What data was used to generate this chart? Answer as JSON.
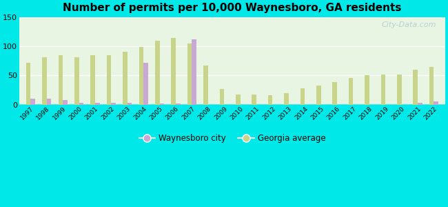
{
  "title": "Number of permits per 10,000 Waynesboro, GA residents",
  "years": [
    1997,
    1998,
    1999,
    2000,
    2001,
    2002,
    2003,
    2004,
    2005,
    2006,
    2007,
    2008,
    2009,
    2010,
    2011,
    2012,
    2013,
    2014,
    2015,
    2016,
    2017,
    2018,
    2019,
    2020,
    2021,
    2022
  ],
  "waynesboro": [
    10,
    10,
    8,
    3,
    3,
    3,
    3,
    72,
    2,
    2,
    112,
    0,
    0,
    0,
    0,
    0,
    0,
    0,
    0,
    0,
    0,
    0,
    0,
    0,
    3,
    6
  ],
  "georgia": [
    72,
    81,
    84,
    81,
    84,
    84,
    90,
    99,
    109,
    114,
    105,
    67,
    27,
    17,
    17,
    16,
    20,
    28,
    33,
    38,
    46,
    50,
    51,
    51,
    60,
    65
  ],
  "waynesboro_color": "#c9a8d4",
  "georgia_color": "#c8d48a",
  "background_color": "#00e8e8",
  "plot_bg": "#e8f5e2",
  "ylim": [
    0,
    150
  ],
  "yticks": [
    0,
    50,
    100,
    150
  ],
  "watermark": "City-Data.com",
  "legend_waynesboro": "Waynesboro city",
  "legend_georgia": "Georgia average"
}
